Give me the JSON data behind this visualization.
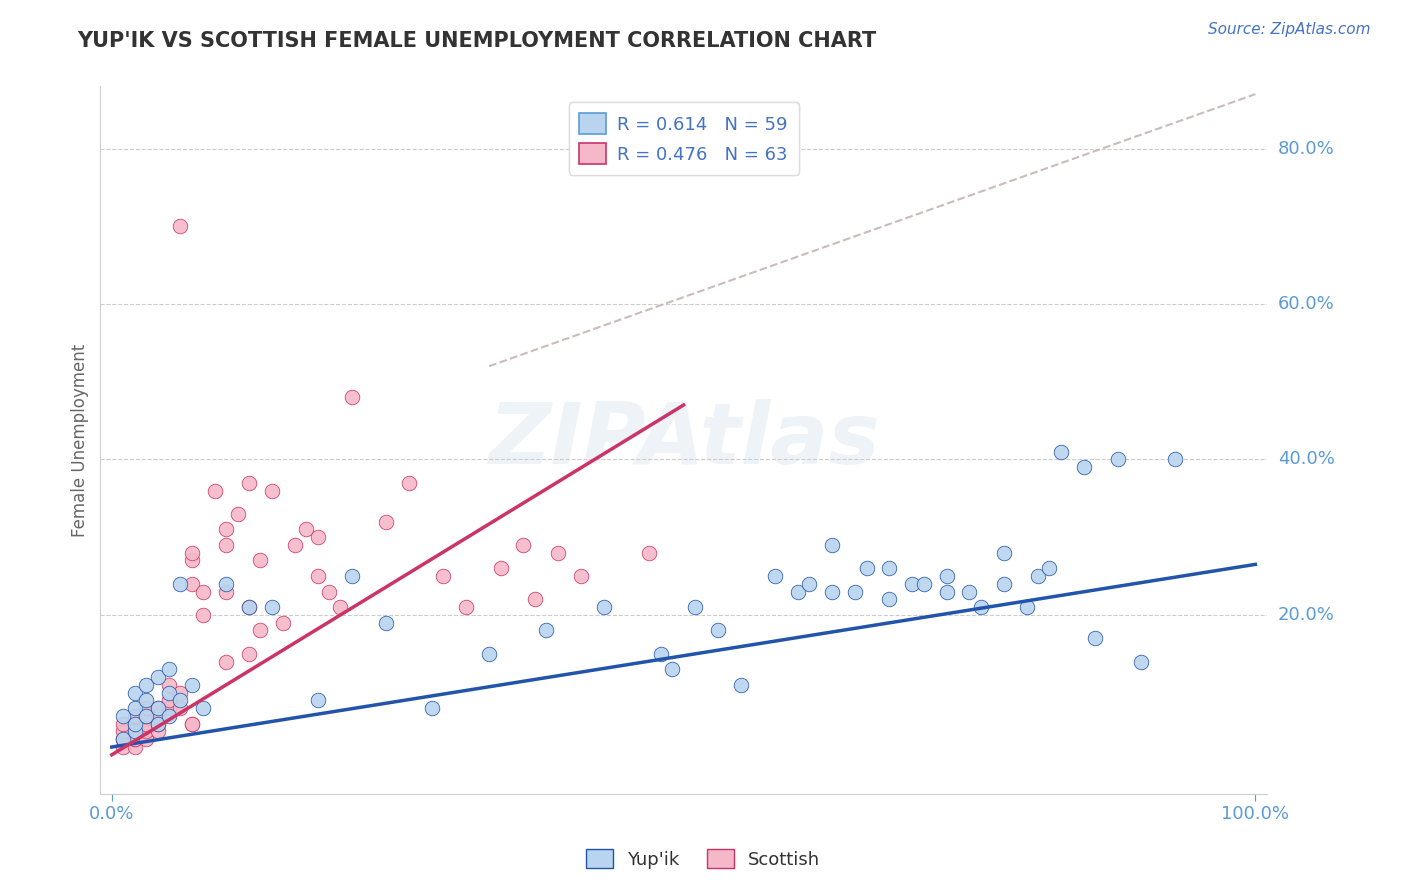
{
  "title": "YUP'IK VS SCOTTISH FEMALE UNEMPLOYMENT CORRELATION CHART",
  "source": "Source: ZipAtlas.com",
  "xlabel": "",
  "ylabel": "Female Unemployment",
  "watermark": "ZIPAtlas",
  "legend_r_entries": [
    {
      "label": "R = 0.614   N = 59",
      "color": "#b8d4ee"
    },
    {
      "label": "R = 0.476   N = 63",
      "color": "#f5b8c8"
    }
  ],
  "legend_labels": [
    "Yup'ik",
    "Scottish"
  ],
  "legend_colors": [
    "#b8d4ee",
    "#f5b8c8"
  ],
  "xmin": 0.0,
  "xmax": 1.0,
  "ymin": 0.0,
  "ymax": 0.88,
  "ytick_labels": [
    "20.0%",
    "40.0%",
    "60.0%",
    "80.0%"
  ],
  "ytick_vals": [
    0.2,
    0.4,
    0.6,
    0.8
  ],
  "xtick_labels": [
    "0.0%",
    "100.0%"
  ],
  "xtick_vals": [
    0.0,
    1.0
  ],
  "background_color": "#ffffff",
  "title_color": "#333333",
  "axis_label_color": "#666666",
  "tick_color": "#5b9bd5",
  "grid_color": "#cccccc",
  "blue_scatter_color": "#b8d4ee",
  "pink_scatter_color": "#f5b8c8",
  "blue_line_color": "#2255aa",
  "pink_line_color": "#cc3366",
  "ref_line_color": "#ccbbbb",
  "blue_scatter": [
    [
      0.01,
      0.04
    ],
    [
      0.01,
      0.07
    ],
    [
      0.02,
      0.05
    ],
    [
      0.02,
      0.08
    ],
    [
      0.02,
      0.1
    ],
    [
      0.02,
      0.06
    ],
    [
      0.03,
      0.09
    ],
    [
      0.03,
      0.07
    ],
    [
      0.03,
      0.11
    ],
    [
      0.04,
      0.06
    ],
    [
      0.04,
      0.08
    ],
    [
      0.04,
      0.12
    ],
    [
      0.05,
      0.07
    ],
    [
      0.05,
      0.1
    ],
    [
      0.05,
      0.13
    ],
    [
      0.06,
      0.09
    ],
    [
      0.06,
      0.24
    ],
    [
      0.07,
      0.11
    ],
    [
      0.08,
      0.08
    ],
    [
      0.1,
      0.24
    ],
    [
      0.12,
      0.21
    ],
    [
      0.14,
      0.21
    ],
    [
      0.18,
      0.09
    ],
    [
      0.21,
      0.25
    ],
    [
      0.24,
      0.19
    ],
    [
      0.28,
      0.08
    ],
    [
      0.33,
      0.15
    ],
    [
      0.38,
      0.18
    ],
    [
      0.43,
      0.21
    ],
    [
      0.48,
      0.15
    ],
    [
      0.49,
      0.13
    ],
    [
      0.51,
      0.21
    ],
    [
      0.53,
      0.18
    ],
    [
      0.55,
      0.11
    ],
    [
      0.58,
      0.25
    ],
    [
      0.6,
      0.23
    ],
    [
      0.61,
      0.24
    ],
    [
      0.63,
      0.23
    ],
    [
      0.63,
      0.29
    ],
    [
      0.65,
      0.23
    ],
    [
      0.66,
      0.26
    ],
    [
      0.68,
      0.22
    ],
    [
      0.68,
      0.26
    ],
    [
      0.7,
      0.24
    ],
    [
      0.71,
      0.24
    ],
    [
      0.73,
      0.23
    ],
    [
      0.73,
      0.25
    ],
    [
      0.75,
      0.23
    ],
    [
      0.76,
      0.21
    ],
    [
      0.78,
      0.28
    ],
    [
      0.78,
      0.24
    ],
    [
      0.8,
      0.21
    ],
    [
      0.81,
      0.25
    ],
    [
      0.82,
      0.26
    ],
    [
      0.83,
      0.41
    ],
    [
      0.85,
      0.39
    ],
    [
      0.86,
      0.17
    ],
    [
      0.88,
      0.4
    ],
    [
      0.9,
      0.14
    ],
    [
      0.93,
      0.4
    ]
  ],
  "pink_scatter": [
    [
      0.01,
      0.03
    ],
    [
      0.01,
      0.04
    ],
    [
      0.01,
      0.04
    ],
    [
      0.01,
      0.05
    ],
    [
      0.01,
      0.06
    ],
    [
      0.02,
      0.03
    ],
    [
      0.02,
      0.04
    ],
    [
      0.02,
      0.05
    ],
    [
      0.02,
      0.06
    ],
    [
      0.02,
      0.07
    ],
    [
      0.02,
      0.04
    ],
    [
      0.03,
      0.04
    ],
    [
      0.03,
      0.05
    ],
    [
      0.03,
      0.06
    ],
    [
      0.03,
      0.07
    ],
    [
      0.03,
      0.08
    ],
    [
      0.04,
      0.05
    ],
    [
      0.04,
      0.06
    ],
    [
      0.04,
      0.08
    ],
    [
      0.04,
      0.07
    ],
    [
      0.05,
      0.08
    ],
    [
      0.05,
      0.09
    ],
    [
      0.05,
      0.11
    ],
    [
      0.06,
      0.08
    ],
    [
      0.06,
      0.1
    ],
    [
      0.06,
      0.7
    ],
    [
      0.07,
      0.06
    ],
    [
      0.07,
      0.06
    ],
    [
      0.07,
      0.27
    ],
    [
      0.07,
      0.28
    ],
    [
      0.07,
      0.24
    ],
    [
      0.08,
      0.23
    ],
    [
      0.08,
      0.2
    ],
    [
      0.09,
      0.36
    ],
    [
      0.1,
      0.14
    ],
    [
      0.1,
      0.23
    ],
    [
      0.1,
      0.29
    ],
    [
      0.1,
      0.31
    ],
    [
      0.11,
      0.33
    ],
    [
      0.12,
      0.15
    ],
    [
      0.12,
      0.21
    ],
    [
      0.12,
      0.37
    ],
    [
      0.13,
      0.27
    ],
    [
      0.13,
      0.18
    ],
    [
      0.14,
      0.36
    ],
    [
      0.15,
      0.19
    ],
    [
      0.16,
      0.29
    ],
    [
      0.17,
      0.31
    ],
    [
      0.18,
      0.25
    ],
    [
      0.18,
      0.3
    ],
    [
      0.19,
      0.23
    ],
    [
      0.2,
      0.21
    ],
    [
      0.21,
      0.48
    ],
    [
      0.24,
      0.32
    ],
    [
      0.26,
      0.37
    ],
    [
      0.29,
      0.25
    ],
    [
      0.31,
      0.21
    ],
    [
      0.34,
      0.26
    ],
    [
      0.36,
      0.29
    ],
    [
      0.37,
      0.22
    ],
    [
      0.39,
      0.28
    ],
    [
      0.41,
      0.25
    ],
    [
      0.47,
      0.28
    ]
  ],
  "blue_line": {
    "x0": 0.0,
    "y0": 0.03,
    "x1": 1.0,
    "y1": 0.265
  },
  "pink_line": {
    "x0": 0.0,
    "y0": 0.02,
    "x1": 0.5,
    "y1": 0.47
  },
  "ref_line": {
    "x0": 0.33,
    "y0": 0.52,
    "x1": 1.0,
    "y1": 0.87
  }
}
